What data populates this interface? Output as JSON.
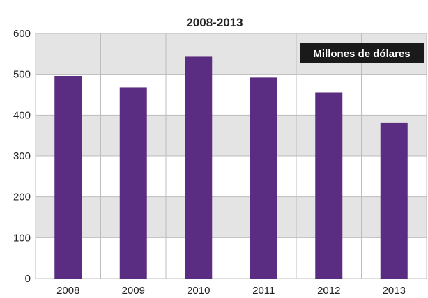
{
  "chart_data": {
    "type": "bar",
    "title": "2008-2013",
    "legend_label": "Millones de dólares",
    "legend_placement": "top-right",
    "categories": [
      "2008",
      "2009",
      "2010",
      "2011",
      "2012",
      "2013"
    ],
    "values": [
      496,
      468,
      543,
      492,
      456,
      382
    ],
    "ylim": [
      0,
      600
    ],
    "yticks": [
      "0",
      "100",
      "200",
      "300",
      "400",
      "500",
      "600"
    ],
    "xlabel": "",
    "ylabel": "",
    "grid": true,
    "colors": {
      "bar": "#5b2d82",
      "band": "#e4e4e4",
      "grid": "#bdbdbd",
      "legend_bg": "#1a1a1a"
    }
  }
}
